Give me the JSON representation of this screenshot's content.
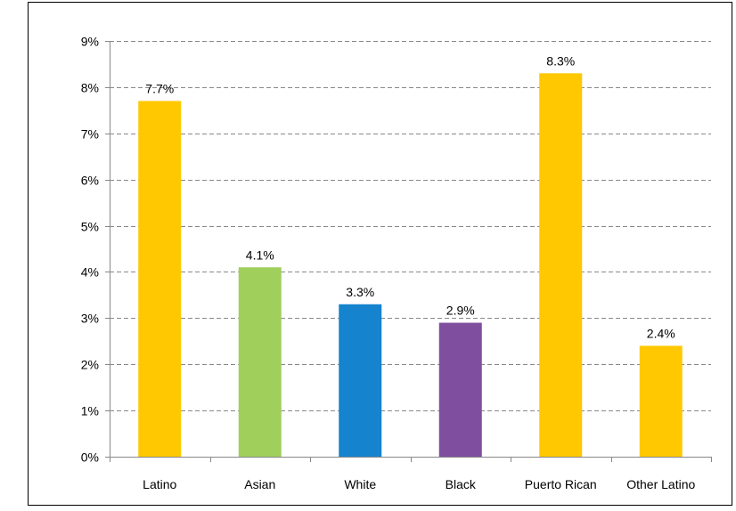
{
  "chart_data": {
    "type": "bar",
    "title": "",
    "xlabel": "",
    "ylabel": "",
    "categories": [
      "Latino",
      "Asian",
      "White",
      "Black",
      "Puerto Rican",
      "Other Latino"
    ],
    "values": [
      7.7,
      4.1,
      3.3,
      2.9,
      8.3,
      2.4
    ],
    "value_labels": [
      "7.7%",
      "4.1%",
      "3.3%",
      "2.9%",
      "8.3%",
      "2.4%"
    ],
    "colors": [
      "#FFC800",
      "#A0CF5C",
      "#1583CE",
      "#7F4E9E",
      "#FFC800",
      "#FFC800"
    ],
    "ylim": [
      0,
      9
    ],
    "yticks": [
      0,
      1,
      2,
      3,
      4,
      5,
      6,
      7,
      8,
      9
    ],
    "ytick_labels": [
      "0%",
      "1%",
      "2%",
      "3%",
      "4%",
      "5%",
      "6%",
      "7%",
      "8%",
      "9%"
    ],
    "grid": true,
    "grid_style": "dashed",
    "legend": "none"
  }
}
